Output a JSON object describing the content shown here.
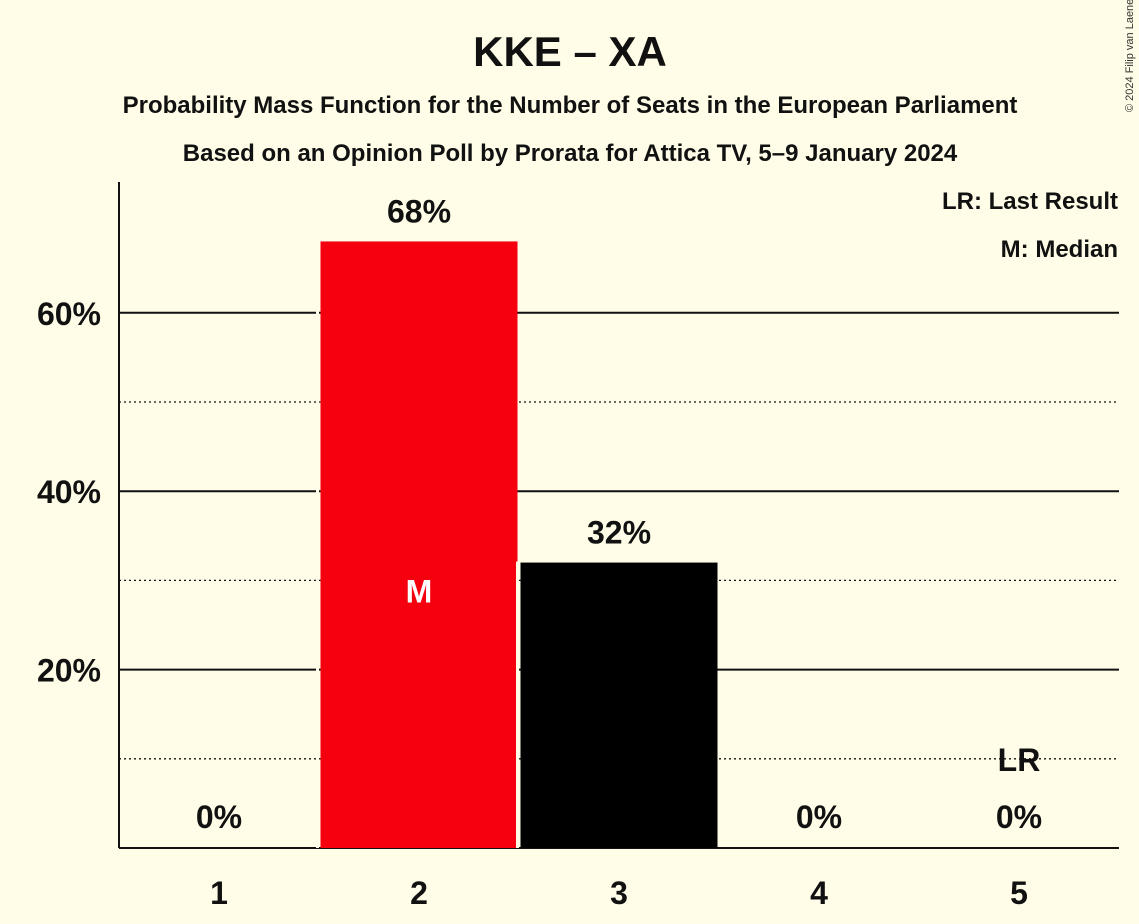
{
  "chart_data": {
    "type": "bar",
    "title": "KKE – XA",
    "subtitle": "Probability Mass Function for the Number of Seats in the European Parliament",
    "subtitle2": "Based on an Opinion Poll by Prorata for Attica TV, 5–9 January 2024",
    "categories": [
      "1",
      "2",
      "3",
      "4",
      "5"
    ],
    "values": [
      0,
      68,
      32,
      0,
      0
    ],
    "value_labels": [
      "0%",
      "68%",
      "32%",
      "0%",
      "0%"
    ],
    "bar_colors": [
      "#000000",
      "#f5000f",
      "#000000",
      "#000000",
      "#000000"
    ],
    "median_category": "2",
    "median_marker": "M",
    "last_result_category": "5",
    "last_result_marker": "LR",
    "ylim": [
      0,
      75
    ],
    "yticks": [
      20,
      40,
      60
    ],
    "ytick_labels": [
      "20%",
      "40%",
      "60%"
    ],
    "minor_gridlines": [
      10,
      30,
      50
    ],
    "grid": true,
    "legend": [
      "LR: Last Result",
      "M: Median"
    ],
    "legend_position": "top-right",
    "xlabel": "",
    "ylabel": ""
  },
  "copyright": "© 2024 Filip van Laenen",
  "colors": {
    "background": "#fffde7",
    "accent": "#f5000f",
    "text": "#111111"
  }
}
